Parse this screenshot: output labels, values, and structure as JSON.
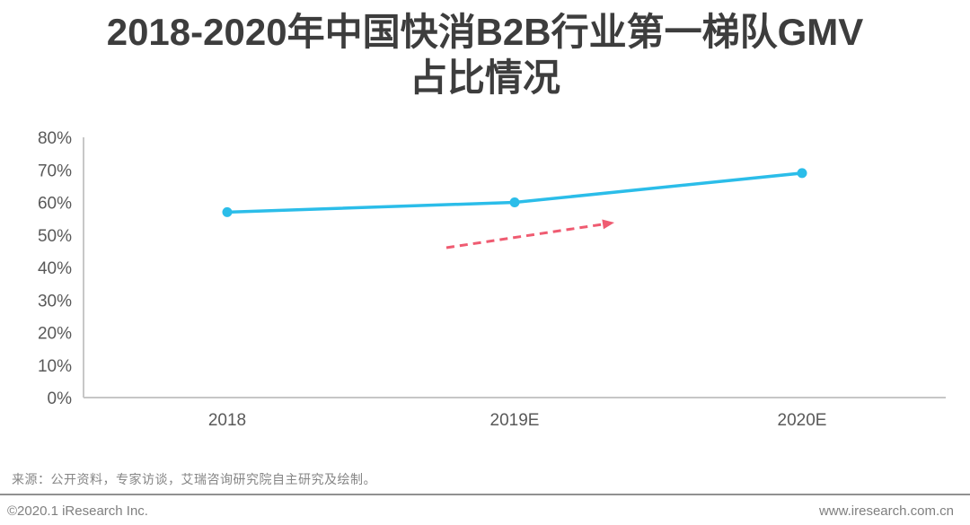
{
  "page": {
    "title_line1": "2018-2020年中国快消B2B行业第一梯队GMV",
    "title_line2": "占比情况",
    "source_note": "来源：公开资料，专家访谈，艾瑞咨询研究院自主研究及绘制。",
    "copyright": "©2020.1 iResearch Inc.",
    "website": "www.iresearch.com.cn"
  },
  "chart_data": {
    "type": "line",
    "title": "2018-2020年中国快消B2B行业第一梯队GMV占比情况",
    "categories": [
      "2018",
      "2019E",
      "2020E"
    ],
    "values": [
      57,
      60,
      69
    ],
    "unit": "%",
    "ylim": [
      0,
      80
    ],
    "ytick_step": 10,
    "ytick_labels": [
      "0%",
      "10%",
      "20%",
      "30%",
      "40%",
      "50%",
      "60%",
      "70%",
      "80%"
    ],
    "grid": false,
    "legend": "none",
    "line_color": "#2bbde9",
    "marker": "circle",
    "annotations": [
      {
        "type": "trend-arrow",
        "style": "dashed",
        "color": "#ef5b71"
      }
    ],
    "colors": {
      "x_axis": "#c6c6c6",
      "y_axis": "#8f8f8f",
      "tick_label": "#595959",
      "title_text": "#3d3d3d",
      "footer_text": "#7f7f7f"
    }
  }
}
